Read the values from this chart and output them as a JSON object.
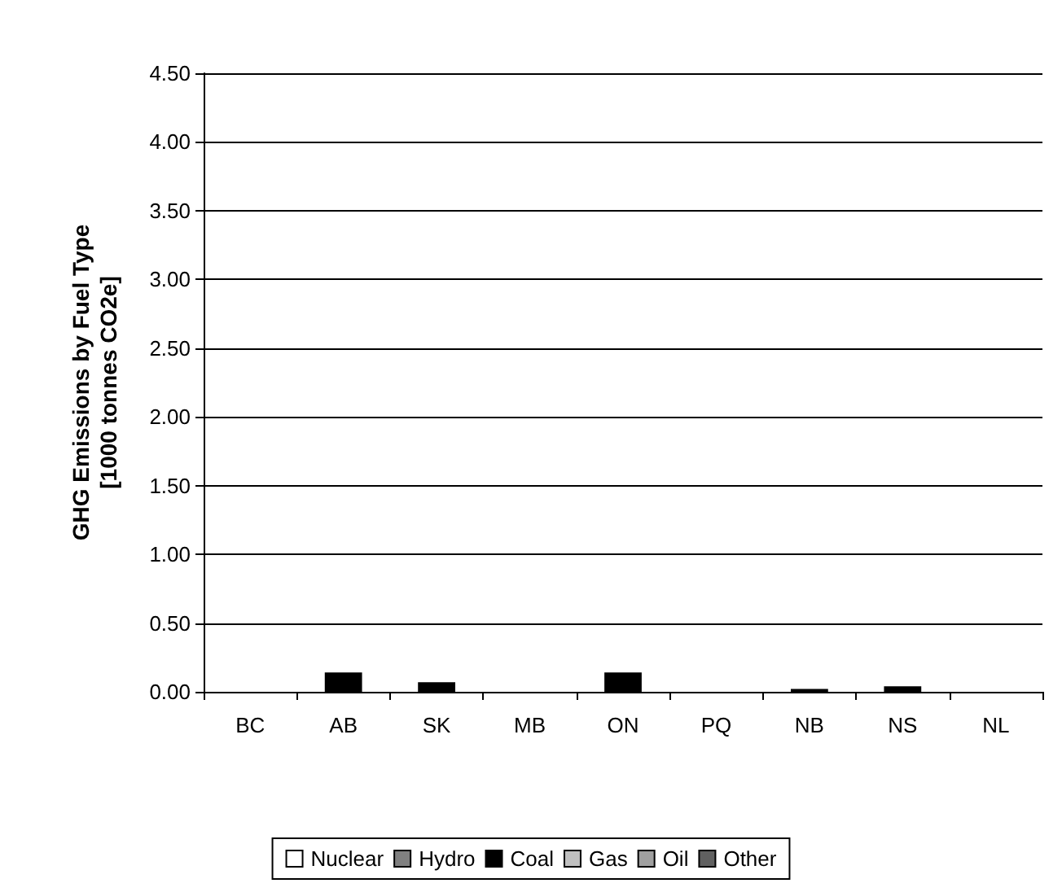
{
  "chart_data": {
    "type": "bar",
    "stacked": true,
    "ylabel": "GHG Emissions by Fuel Type\n[1000 tonnes CO2e]",
    "categories": [
      "BC",
      "AB",
      "SK",
      "MB",
      "ON",
      "PQ",
      "NB",
      "NS",
      "NL"
    ],
    "series": [
      {
        "name": "Nuclear",
        "color": "#ffffff",
        "values": [
          0,
          0,
          0,
          0,
          0,
          0,
          0,
          0,
          0
        ]
      },
      {
        "name": "Hydro",
        "color": "#808080",
        "values": [
          0,
          0,
          0,
          0,
          0,
          0,
          0,
          0,
          0
        ]
      },
      {
        "name": "Coal",
        "color": "#000000",
        "values": [
          0,
          0.14,
          0.07,
          0,
          0.14,
          0,
          0.02,
          0.04,
          0
        ]
      },
      {
        "name": "Gas",
        "color": "#c0c0c0",
        "values": [
          0,
          0,
          0,
          0,
          0,
          0,
          0,
          0,
          0
        ]
      },
      {
        "name": "Oil",
        "color": "#a0a0a0",
        "values": [
          0,
          0,
          0,
          0,
          0,
          0,
          0,
          0,
          0
        ]
      },
      {
        "name": "Other",
        "color": "#606060",
        "values": [
          0,
          0,
          0,
          0,
          0,
          0,
          0,
          0,
          0
        ]
      }
    ],
    "ylim": [
      0,
      4.5
    ],
    "yticks": [
      {
        "value": 0,
        "label": "0.00"
      },
      {
        "value": 0.5,
        "label": "0.50"
      },
      {
        "value": 1,
        "label": "1.00"
      },
      {
        "value": 1.5,
        "label": "1.50"
      },
      {
        "value": 2,
        "label": "2.00"
      },
      {
        "value": 2.5,
        "label": "2.50"
      },
      {
        "value": 3,
        "label": "3.00"
      },
      {
        "value": 3.5,
        "label": "3.50"
      },
      {
        "value": 4,
        "label": "4.00"
      },
      {
        "value": 4.5,
        "label": "4.50"
      }
    ],
    "grid": "y",
    "legend": "bottom"
  }
}
